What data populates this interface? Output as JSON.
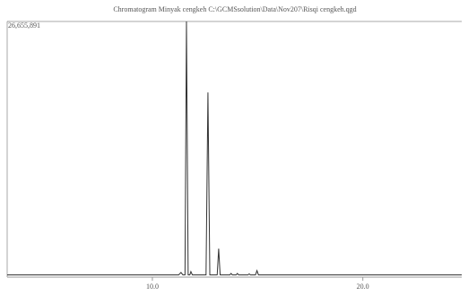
{
  "chart_data": {
    "type": "line",
    "title": "Chromatogram Minyak cengkeh C:\\GCMSsolution\\Data\\Nov207\\Risqi cengkeh.qgd",
    "x": [
      3.1,
      11.25,
      11.36,
      11.45,
      11.55,
      11.62,
      11.7,
      11.78,
      11.83,
      11.9,
      12.55,
      12.64,
      12.73,
      13.08,
      13.15,
      13.22,
      13.68,
      13.74,
      13.8,
      13.98,
      14.04,
      14.1,
      14.54,
      14.6,
      14.66,
      14.9,
      14.97,
      15.04,
      24.7
    ],
    "series": [
      {
        "color": "#333333",
        "values": [
          50000,
          50000,
          300000,
          50000,
          50000,
          26655891,
          50000,
          50000,
          400000,
          50000,
          50000,
          19200000,
          50000,
          50000,
          2800000,
          50000,
          50000,
          200000,
          50000,
          50000,
          200000,
          50000,
          50000,
          150000,
          50000,
          50000,
          500000,
          50000,
          50000
        ]
      }
    ],
    "xlim": [
      3.1,
      24.7
    ],
    "xticks": [
      {
        "value": 10,
        "label": "10.0"
      },
      {
        "value": 20,
        "label": "20.0"
      }
    ],
    "ylim": [
      0,
      26655891
    ],
    "yticks": [
      {
        "value": 26655891,
        "label": "26,655,891"
      }
    ]
  }
}
